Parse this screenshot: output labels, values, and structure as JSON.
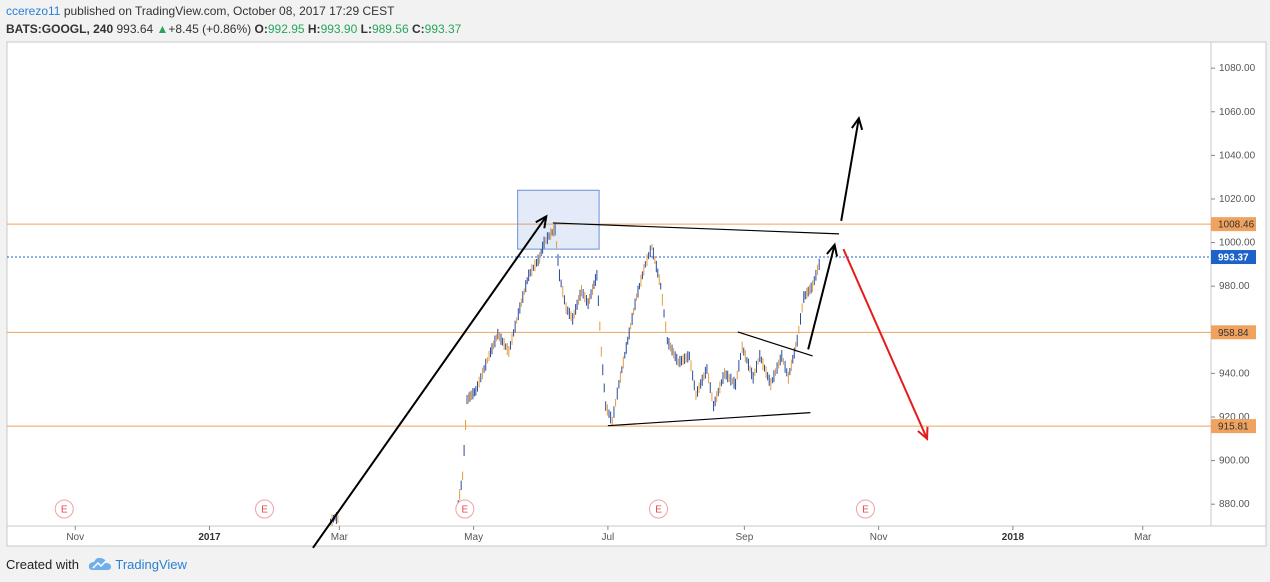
{
  "header": {
    "username": "ccerezo11",
    "published_text": " published on TradingView.com, October 08, 2017 17:29 CEST",
    "symbol": "BATS:GOOGL, 240",
    "last": "993.64",
    "change_arrow": "▲",
    "change": "+8.45 (+0.86%)",
    "o_label": "O:",
    "o_value": "992.95",
    "h_label": "H:",
    "h_value": "993.90",
    "l_label": "L:",
    "l_value": "989.56",
    "c_label": "C:",
    "c_value": "993.37"
  },
  "footer": {
    "created_with": "Created with",
    "brand": "TradingView"
  },
  "chart_data": {
    "type": "candlestick",
    "title": "",
    "xlabel": "",
    "ylabel": "",
    "x_ticks": [
      {
        "label": "Nov",
        "date": "2016-11-01",
        "bold": false
      },
      {
        "label": "2017",
        "date": "2017-01-01",
        "bold": true
      },
      {
        "label": "Mar",
        "date": "2017-03-01",
        "bold": false
      },
      {
        "label": "May",
        "date": "2017-05-01",
        "bold": false
      },
      {
        "label": "Jul",
        "date": "2017-07-01",
        "bold": false
      },
      {
        "label": "Sep",
        "date": "2017-09-01",
        "bold": false
      },
      {
        "label": "Nov",
        "date": "2017-11-01",
        "bold": false
      },
      {
        "label": "2018",
        "date": "2018-01-01",
        "bold": true
      },
      {
        "label": "Mar",
        "date": "2018-03-01",
        "bold": false
      }
    ],
    "y_ticks": [
      "880.00",
      "900.00",
      "920.00",
      "940.00",
      "960.00",
      "980.00",
      "1000.00",
      "1020.00",
      "1040.00",
      "1060.00",
      "1080.00"
    ],
    "ylim": [
      870,
      1092
    ],
    "current_price": {
      "value": 993.37,
      "label": "993.37",
      "color": "#1c62c9"
    },
    "horizontal_levels": [
      {
        "value": 1008.46,
        "label": "1008.46",
        "color": "#f0a35e"
      },
      {
        "value": 958.84,
        "label": "958.84",
        "color": "#f0a35e"
      },
      {
        "value": 915.81,
        "label": "915.81",
        "color": "#f0a35e"
      }
    ],
    "earnings_markers": [
      {
        "date": "2016-10-27",
        "label": "E"
      },
      {
        "date": "2017-01-26",
        "label": "E"
      },
      {
        "date": "2017-04-27",
        "label": "E"
      },
      {
        "date": "2017-07-24",
        "label": "E"
      },
      {
        "date": "2017-10-26",
        "label": "E"
      }
    ],
    "price_path": [
      [
        "2017-02-25",
        872
      ],
      [
        "2017-02-27",
        874
      ],
      [
        "2017-03-01",
        873
      ],
      [
        "2017-04-24",
        880
      ],
      [
        "2017-04-26",
        893
      ],
      [
        "2017-04-28",
        928
      ],
      [
        "2017-05-02",
        932
      ],
      [
        "2017-05-08",
        948
      ],
      [
        "2017-05-12",
        958
      ],
      [
        "2017-05-17",
        950
      ],
      [
        "2017-05-22",
        970
      ],
      [
        "2017-05-26",
        985
      ],
      [
        "2017-05-31",
        993
      ],
      [
        "2017-06-02",
        1000
      ],
      [
        "2017-06-05",
        1004
      ],
      [
        "2017-06-07",
        1006
      ],
      [
        "2017-06-09",
        985
      ],
      [
        "2017-06-12",
        970
      ],
      [
        "2017-06-15",
        965
      ],
      [
        "2017-06-19",
        978
      ],
      [
        "2017-06-22",
        972
      ],
      [
        "2017-06-26",
        985
      ],
      [
        "2017-06-28",
        950
      ],
      [
        "2017-06-30",
        925
      ],
      [
        "2017-07-03",
        918
      ],
      [
        "2017-07-06",
        935
      ],
      [
        "2017-07-10",
        955
      ],
      [
        "2017-07-14",
        975
      ],
      [
        "2017-07-18",
        990
      ],
      [
        "2017-07-21",
        998
      ],
      [
        "2017-07-25",
        980
      ],
      [
        "2017-07-28",
        955
      ],
      [
        "2017-08-02",
        945
      ],
      [
        "2017-08-07",
        948
      ],
      [
        "2017-08-10",
        930
      ],
      [
        "2017-08-15",
        942
      ],
      [
        "2017-08-18",
        925
      ],
      [
        "2017-08-23",
        940
      ],
      [
        "2017-08-28",
        935
      ],
      [
        "2017-08-31",
        952
      ],
      [
        "2017-09-05",
        938
      ],
      [
        "2017-09-08",
        948
      ],
      [
        "2017-09-13",
        935
      ],
      [
        "2017-09-18",
        948
      ],
      [
        "2017-09-21",
        938
      ],
      [
        "2017-09-25",
        955
      ],
      [
        "2017-09-28",
        975
      ],
      [
        "2017-10-02",
        980
      ],
      [
        "2017-10-05",
        990
      ],
      [
        "2017-10-06",
        993
      ]
    ],
    "annotations": [
      {
        "kind": "rect",
        "name": "supply-zone-box",
        "x1": "2017-05-21",
        "x2": "2017-06-27",
        "y1": 997,
        "y2": 1024,
        "color": "#6b8fd6"
      },
      {
        "kind": "arrow",
        "name": "uptrend-arrow",
        "from": [
          "2017-02-17",
          860
        ],
        "to": [
          "2017-06-03",
          1012
        ],
        "color": "#000000"
      },
      {
        "kind": "line",
        "name": "upper-trendline",
        "from": [
          "2017-06-06",
          1009
        ],
        "to": [
          "2017-10-14",
          1004
        ],
        "color": "#000000"
      },
      {
        "kind": "line",
        "name": "lower-trendline",
        "from": [
          "2017-07-01",
          916
        ],
        "to": [
          "2017-10-01",
          922
        ],
        "color": "#000000"
      },
      {
        "kind": "line",
        "name": "flag-line",
        "from": [
          "2017-08-29",
          959
        ],
        "to": [
          "2017-10-02",
          948
        ],
        "color": "#000000"
      },
      {
        "kind": "arrow",
        "name": "rally-arrow",
        "from": [
          "2017-09-30",
          951
        ],
        "to": [
          "2017-10-12",
          999
        ],
        "color": "#000000"
      },
      {
        "kind": "arrow",
        "name": "breakout-arrow",
        "from": [
          "2017-10-15",
          1010
        ],
        "to": [
          "2017-10-23",
          1057
        ],
        "color": "#000000"
      },
      {
        "kind": "arrow",
        "name": "breakdown-arrow",
        "from": [
          "2017-10-16",
          997
        ],
        "to": [
          "2017-11-23",
          910
        ],
        "color": "#e51c1c"
      }
    ]
  }
}
